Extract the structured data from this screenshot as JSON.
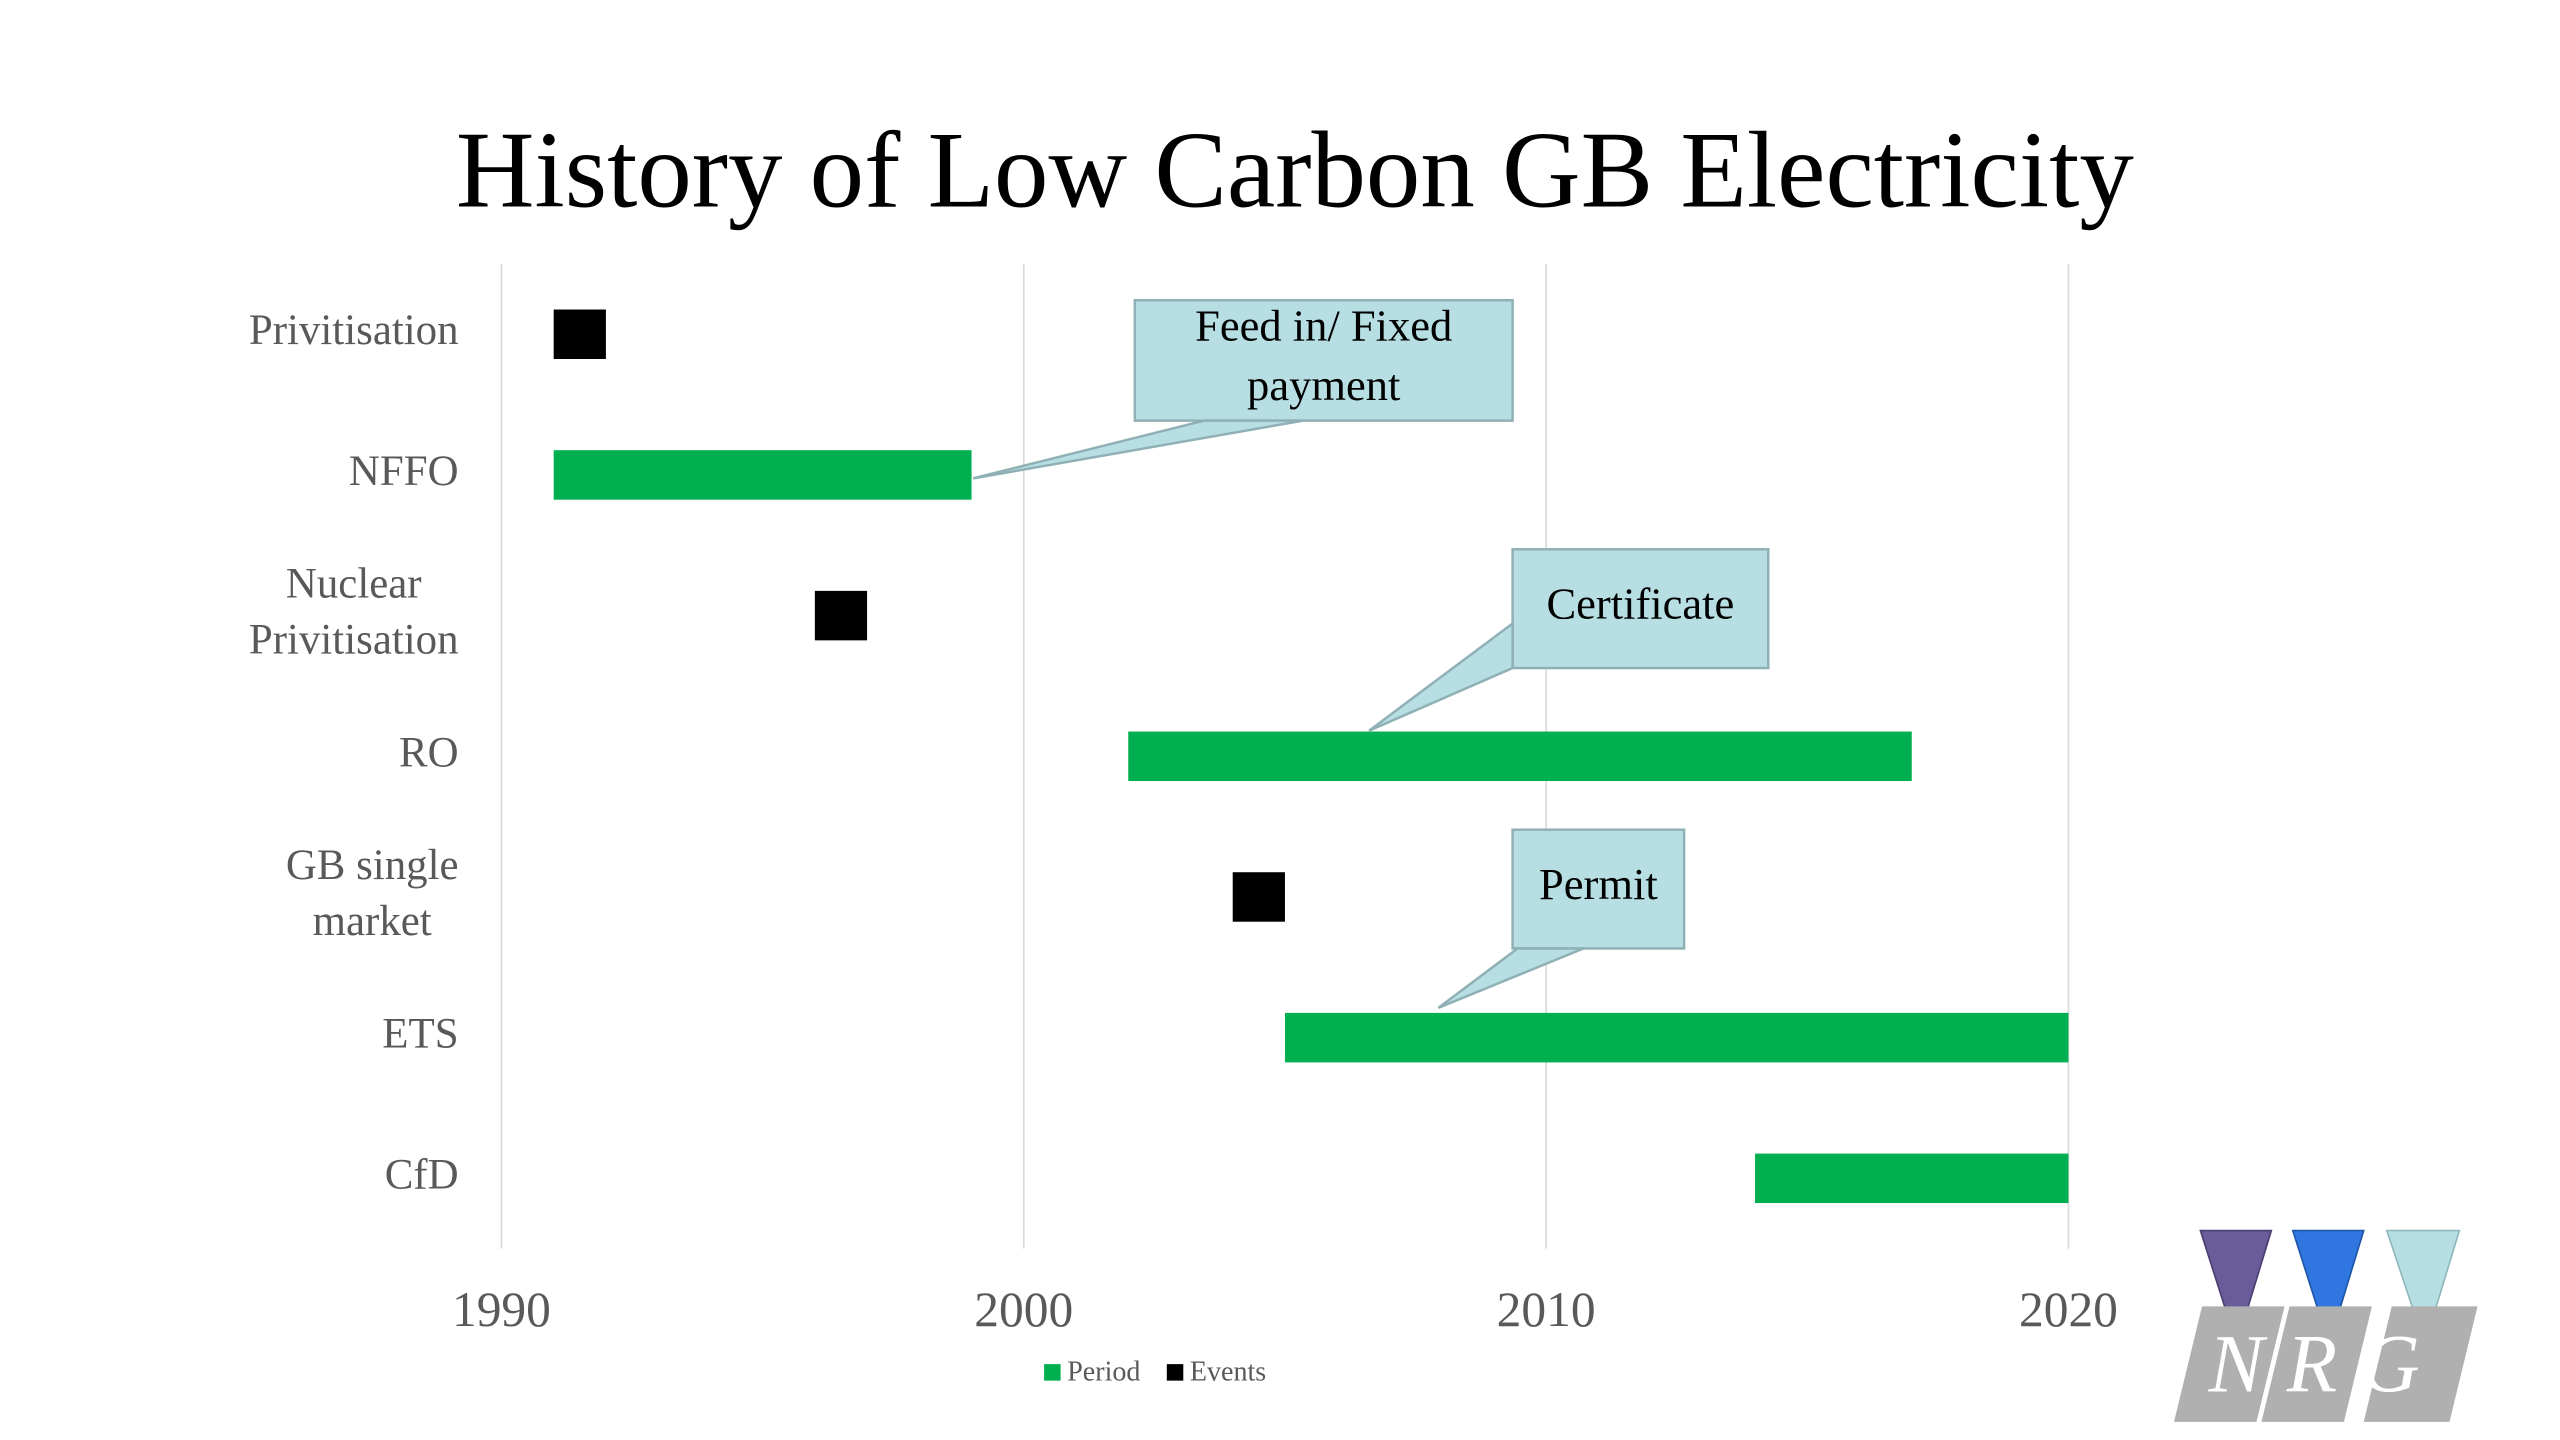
{
  "chart_data": {
    "type": "gantt",
    "title": "History of Low Carbon GB Electricity",
    "categories": [
      "Privitisation",
      "NFFO",
      "Nuclear Privitisation",
      "RO",
      "GB single market",
      "ETS",
      "CfD"
    ],
    "series": [
      {
        "name": "Period",
        "color": "#00b050",
        "starts": [
          null,
          1991,
          null,
          2002,
          null,
          2005,
          2014
        ],
        "ends": [
          null,
          1999,
          null,
          2017,
          null,
          2020,
          2020
        ]
      },
      {
        "name": "Events",
        "color": "#000000",
        "values": [
          1991.5,
          null,
          1996.5,
          null,
          2004.5,
          null,
          null
        ]
      }
    ],
    "xlim": [
      1990,
      2020
    ],
    "xticks": [
      1990,
      2000,
      2010,
      2020
    ],
    "grid": true,
    "legend": "bottom",
    "annotations": [
      {
        "text": "Feed in/ Fixed payment"
      },
      {
        "text": "Certificate"
      },
      {
        "text": "Permit"
      }
    ],
    "logo": "NRG"
  }
}
